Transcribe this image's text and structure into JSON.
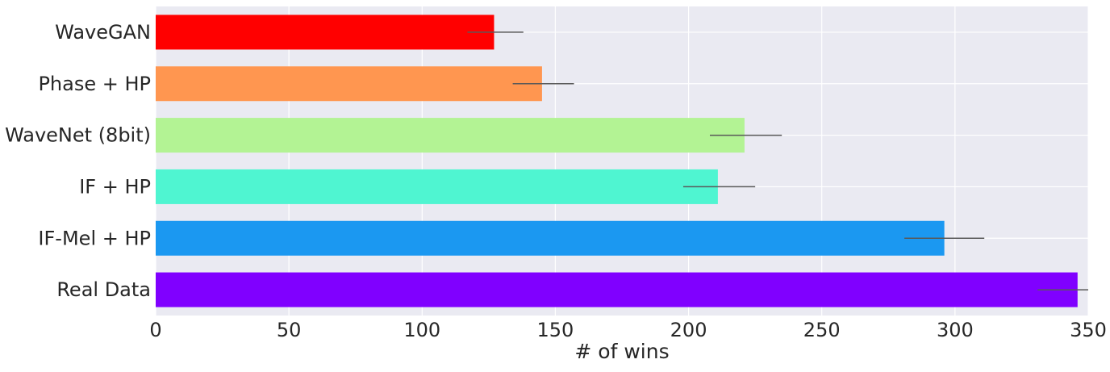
{
  "chart_data": {
    "type": "bar",
    "orientation": "horizontal",
    "categories": [
      "WaveGAN",
      "Phase + HP",
      "WaveNet (8bit)",
      "IF + HP",
      "IF-Mel + HP",
      "Real Data"
    ],
    "values": [
      127,
      145,
      221,
      211,
      296,
      346
    ],
    "error_ranges": [
      [
        117,
        138
      ],
      [
        134,
        157
      ],
      [
        208,
        235
      ],
      [
        198,
        225
      ],
      [
        281,
        311
      ],
      [
        331,
        350
      ]
    ],
    "colors": [
      "#ff0000",
      "#ff9650",
      "#b3f394",
      "#4ff5d1",
      "#1b98f1",
      "#8000ff"
    ],
    "xlabel": "# of wins",
    "ylabel": "",
    "title": "",
    "xlim": [
      0,
      350
    ],
    "xticks": [
      0,
      50,
      100,
      150,
      200,
      250,
      300,
      350
    ],
    "grid": true,
    "style": {
      "plot_background": "#eaeaf2",
      "grid_color": "#ffffff",
      "error_bar_color": "#595959"
    }
  }
}
